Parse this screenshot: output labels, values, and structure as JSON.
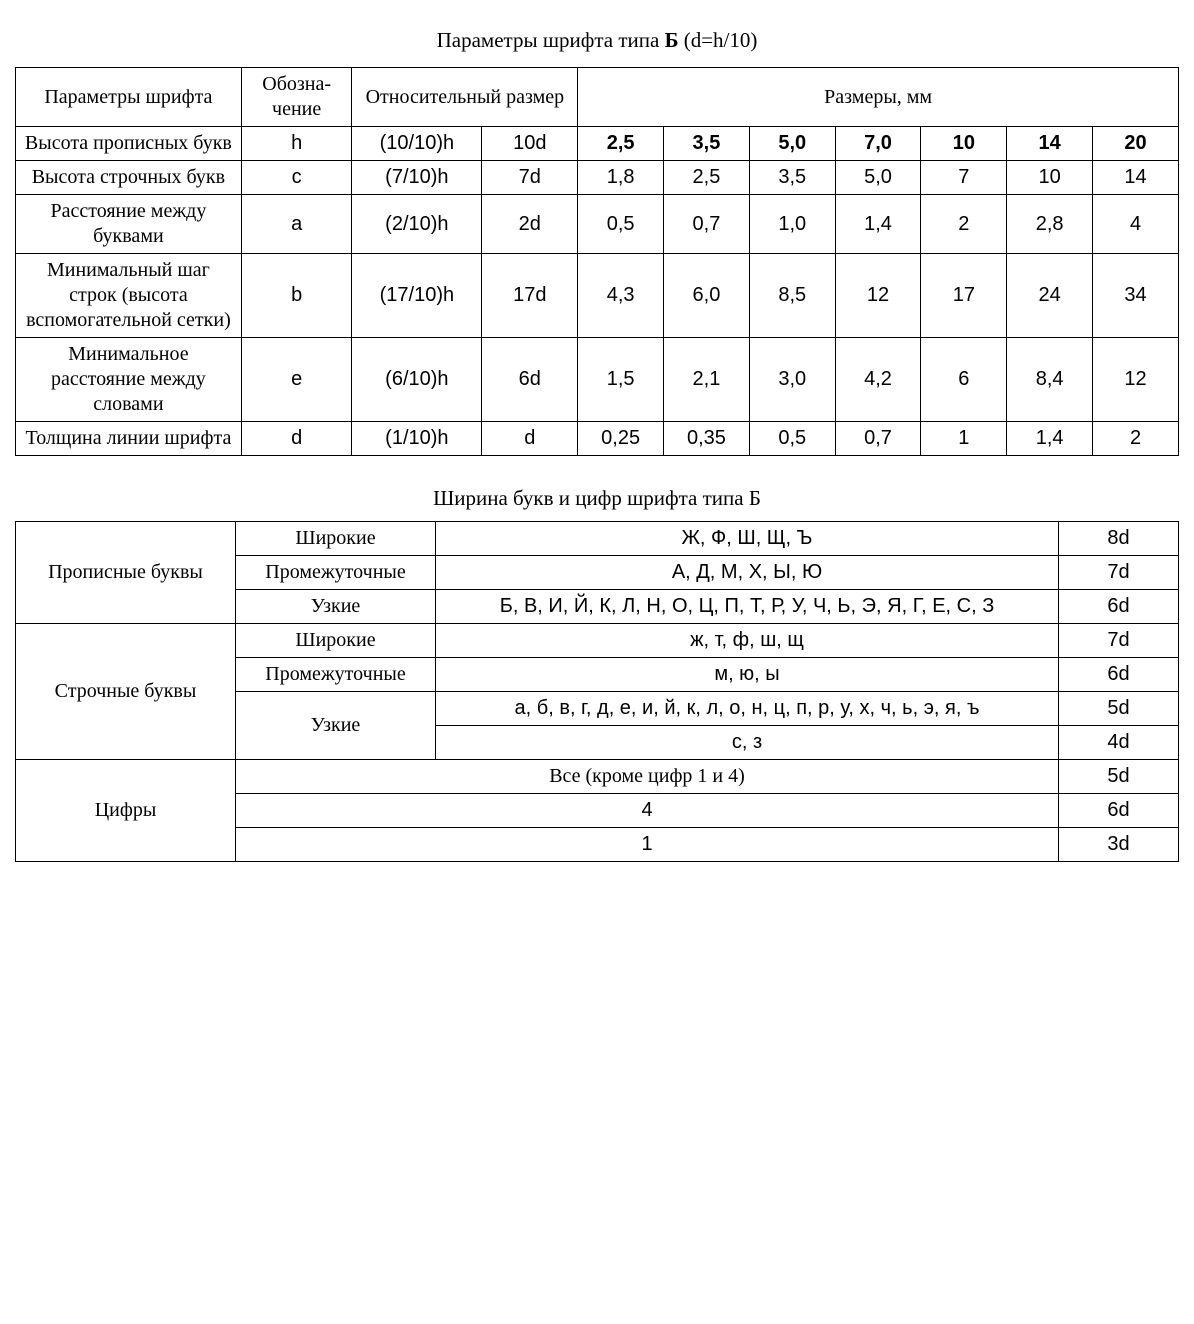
{
  "title_prefix": "Параметры шрифта типа ",
  "title_letter": "Б",
  "title_suffix": " (d=h/10)",
  "t1": {
    "head": {
      "param": "Параметры шрифта",
      "sym": "Обозна-\nчение",
      "rel": "Относительный размер",
      "sizes": "Размеры, мм"
    },
    "rows": [
      {
        "param": "Высота прописных букв",
        "sym": "h",
        "rel1": "(10/10)h",
        "rel2": "10d",
        "vals": [
          "2,5",
          "3,5",
          "5,0",
          "7,0",
          "10",
          "14",
          "20"
        ],
        "bold": true
      },
      {
        "param": "Высота строчных букв",
        "sym": "c",
        "rel1": "(7/10)h",
        "rel2": "7d",
        "vals": [
          "1,8",
          "2,5",
          "3,5",
          "5,0",
          "7",
          "10",
          "14"
        ]
      },
      {
        "param": "Расстояние между буквами",
        "sym": "a",
        "rel1": "(2/10)h",
        "rel2": "2d",
        "vals": [
          "0,5",
          "0,7",
          "1,0",
          "1,4",
          "2",
          "2,8",
          "4"
        ]
      },
      {
        "param": "Минимальный шаг строк (высота вспомогательной сетки)",
        "sym": "b",
        "rel1": "(17/10)h",
        "rel2": "17d",
        "vals": [
          "4,3",
          "6,0",
          "8,5",
          "12",
          "17",
          "24",
          "34"
        ]
      },
      {
        "param": "Минимальное расстояние между словами",
        "sym": "e",
        "rel1": "(6/10)h",
        "rel2": "6d",
        "vals": [
          "1,5",
          "2,1",
          "3,0",
          "4,2",
          "6",
          "8,4",
          "12"
        ]
      },
      {
        "param": "Толщина линии шрифта",
        "sym": "d",
        "rel1": "(1/10)h",
        "rel2": "d",
        "vals": [
          "0,25",
          "0,35",
          "0,5",
          "0,7",
          "1",
          "1,4",
          "2"
        ]
      }
    ]
  },
  "t2_title": "Ширина букв и цифр шрифта типа Б",
  "t2": {
    "groups": [
      {
        "cat": "Прописные буквы",
        "rows": [
          {
            "type": "Широкие",
            "chars": "Ж, Ф, Ш, Щ, Ъ",
            "size": "8d"
          },
          {
            "type": "Промежуточные",
            "chars": "А, Д, М, Х, Ы, Ю",
            "size": "7d"
          },
          {
            "type": "Узкие",
            "chars": "Б, В, И, Й, К, Л, Н, О, Ц, П, Т, Р, У, Ч, Ь, Э, Я, Г, Е, С, З",
            "size": "6d"
          }
        ]
      },
      {
        "cat": "Строчные буквы",
        "rows": [
          {
            "type": "Широкие",
            "chars": "ж, т, ф, ш, щ",
            "size": "7d"
          },
          {
            "type": "Промежуточные",
            "chars": "м, ю, ы",
            "size": "6d"
          },
          {
            "type": "Узкие",
            "chars": "а, б, в, г, д, е, и, й, к, л, о, н, ц, п, р, у, х, ч, ь, э, я, ъ",
            "size": "5d",
            "typeRowspan": 2
          },
          {
            "type": null,
            "chars": "с, з",
            "size": "4d"
          }
        ]
      },
      {
        "cat": "Цифры",
        "rows": [
          {
            "type": null,
            "wide": "Все (кроме цифр 1 и 4)",
            "chars_plain": true,
            "size": "5d"
          },
          {
            "type": null,
            "wide": "4",
            "size": "6d"
          },
          {
            "type": null,
            "wide": "1",
            "size": "3d"
          }
        ]
      }
    ]
  }
}
